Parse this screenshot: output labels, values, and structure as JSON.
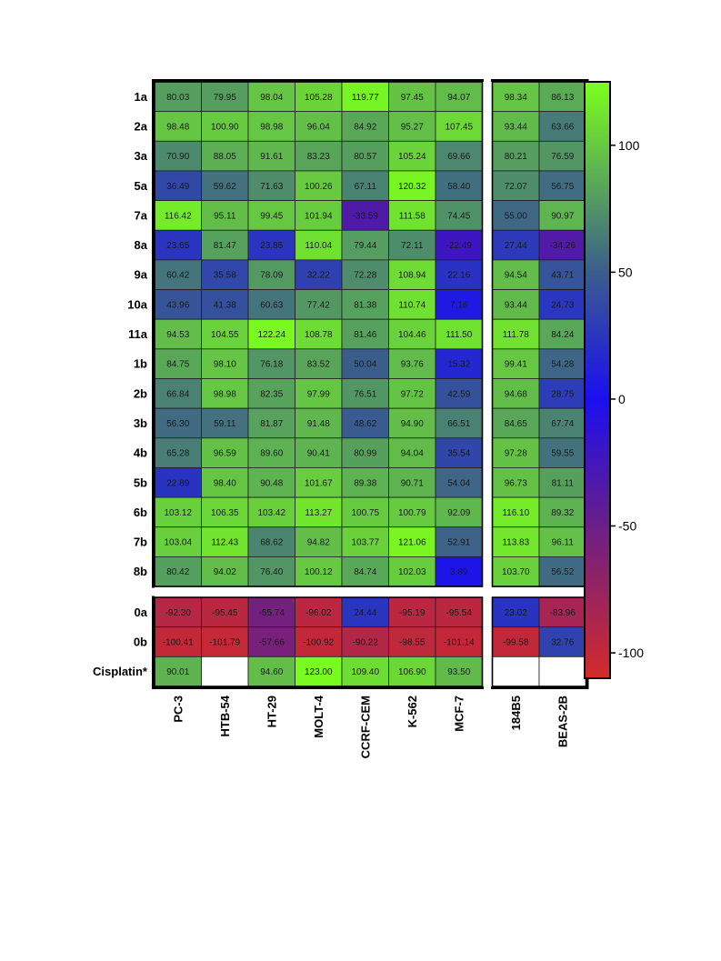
{
  "chart_data": {
    "type": "heatmap",
    "title": "",
    "xlabel": "",
    "ylabel": "",
    "grid": true,
    "legend": "colorbar-right",
    "columns": [
      "PC-3",
      "HTB-54",
      "HT-29",
      "MOLT-4",
      "CCRF-CEM",
      "K-562",
      "MCF-7",
      "184B5",
      "BEAS-2B"
    ],
    "column_groups": [
      [
        "PC-3",
        "HTB-54",
        "HT-29",
        "MOLT-4",
        "CCRF-CEM",
        "K-562",
        "MCF-7"
      ],
      [
        "184B5",
        "BEAS-2B"
      ]
    ],
    "rows": [
      "1a",
      "2a",
      "3a",
      "5a",
      "7a",
      "8a",
      "9a",
      "10a",
      "11a",
      "1b",
      "2b",
      "3b",
      "4b",
      "5b",
      "6b",
      "7b",
      "8b",
      "0a",
      "0b",
      "Cisplatin*"
    ],
    "row_groups": [
      [
        "1a",
        "2a",
        "3a",
        "5a",
        "7a",
        "8a",
        "9a",
        "10a",
        "11a",
        "1b",
        "2b",
        "3b",
        "4b",
        "5b",
        "6b",
        "7b",
        "8b"
      ],
      [
        "0a",
        "0b",
        "Cisplatin*"
      ]
    ],
    "values": [
      [
        "80.03",
        "79.95",
        "98.04",
        "105.28",
        "119.77",
        "97.45",
        "94.07",
        "98.34",
        "86.13"
      ],
      [
        "98.48",
        "100.90",
        "98.98",
        "96.04",
        "84.92",
        "95.27",
        "107.45",
        "93.44",
        "63.66"
      ],
      [
        "70.90",
        "88.05",
        "91.61",
        "83.23",
        "80.57",
        "105.24",
        "69.66",
        "80.21",
        "76.59"
      ],
      [
        "36.49",
        "59.62",
        "71.63",
        "100.26",
        "67.11",
        "120.32",
        "58.40",
        "72.07",
        "56.75"
      ],
      [
        "116.42",
        "95.11",
        "99.45",
        "101.94",
        "-33.59",
        "111.58",
        "74.45",
        "55.00",
        "90.97"
      ],
      [
        "23.65",
        "81.47",
        "23.85",
        "110.04",
        "79.44",
        "72.11",
        "-22.49",
        "27.44",
        "-34.26"
      ],
      [
        "60.42",
        "35.58",
        "78.09",
        "32.22",
        "72.28",
        "108.94",
        "22.16",
        "94.54",
        "43.71"
      ],
      [
        "43.96",
        "41.38",
        "60.63",
        "77.42",
        "81.38",
        "110.74",
        "7.16",
        "93.44",
        "24.73"
      ],
      [
        "94.53",
        "104.55",
        "122.24",
        "108.78",
        "81.46",
        "104.46",
        "111.50",
        "111.78",
        "84.24"
      ],
      [
        "84.75",
        "98.10",
        "76.18",
        "83.52",
        "50.04",
        "93.76",
        "15.32",
        "99.41",
        "54.28"
      ],
      [
        "66.84",
        "98.98",
        "82.35",
        "97.99",
        "76.51",
        "97.72",
        "42.59",
        "94.68",
        "28.75"
      ],
      [
        "56.30",
        "59.11",
        "81.87",
        "91.48",
        "48.62",
        "94.90",
        "66.51",
        "84.65",
        "67.74"
      ],
      [
        "65.28",
        "96.59",
        "89.60",
        "90.41",
        "80.99",
        "94.04",
        "35.54",
        "97.28",
        "59.55"
      ],
      [
        "22.89",
        "98.40",
        "90.48",
        "101.67",
        "89.38",
        "90.71",
        "54.04",
        "96.73",
        "81.11"
      ],
      [
        "103.12",
        "106.35",
        "103.42",
        "113.27",
        "100.75",
        "100.79",
        "92.09",
        "116.10",
        "89.32"
      ],
      [
        "103.04",
        "112.43",
        "68.62",
        "94.82",
        "103.77",
        "121.06",
        "52.91",
        "113.83",
        "96.11"
      ],
      [
        "80.42",
        "94.02",
        "76.40",
        "100.12",
        "84.74",
        "102.03",
        "3.89",
        "103.70",
        "56.52"
      ],
      [
        "-92.30",
        "-95.45",
        "-55.74",
        "-96.02",
        "24.44",
        "-95.19",
        "-95.54",
        "23.02",
        "-83.96"
      ],
      [
        "-100.41",
        "-101.79",
        "-57.66",
        "-100.92",
        "-90.22",
        "-98.55",
        "-101.14",
        "-99.58",
        "32.76"
      ],
      [
        "90.01",
        null,
        "94.60",
        "123.00",
        "109.40",
        "106.90",
        "93.50",
        null,
        null
      ]
    ],
    "colorbar": {
      "range": [
        -110,
        125
      ],
      "ticks": [
        100,
        50,
        0,
        -50,
        -100
      ],
      "tick_labels": [
        "100",
        "50",
        "0",
        "-50",
        "-100"
      ],
      "stops": [
        {
          "value": -110,
          "color": "#d42a2a"
        },
        {
          "value": -50,
          "color": "#6a1f87"
        },
        {
          "value": 0,
          "color": "#1a0ff0"
        },
        {
          "value": 50,
          "color": "#3b5d8c"
        },
        {
          "value": 125,
          "color": "#7cff1c"
        }
      ],
      "empty_color": "#ffffff"
    }
  }
}
